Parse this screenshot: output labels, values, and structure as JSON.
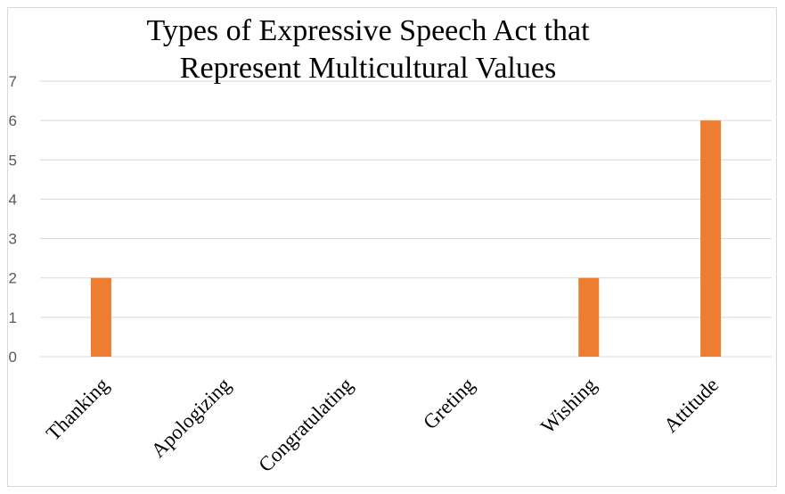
{
  "chart_data": {
    "type": "bar",
    "title_lines": [
      "Types of Expressive Speech Act that",
      "Represent Multicultural Values"
    ],
    "categories": [
      "Thanking",
      "Apologizing",
      "Congratulating",
      "Greting",
      "Wishing",
      "Attitude"
    ],
    "values": [
      2,
      0,
      0,
      0,
      2,
      6
    ],
    "ylim": [
      0,
      7
    ],
    "yticks": [
      "0",
      "1",
      "2",
      "3",
      "4",
      "5",
      "6",
      "7"
    ],
    "grid": true,
    "bar_color": "#ed7d31",
    "grid_color": "#d9d9d9"
  }
}
